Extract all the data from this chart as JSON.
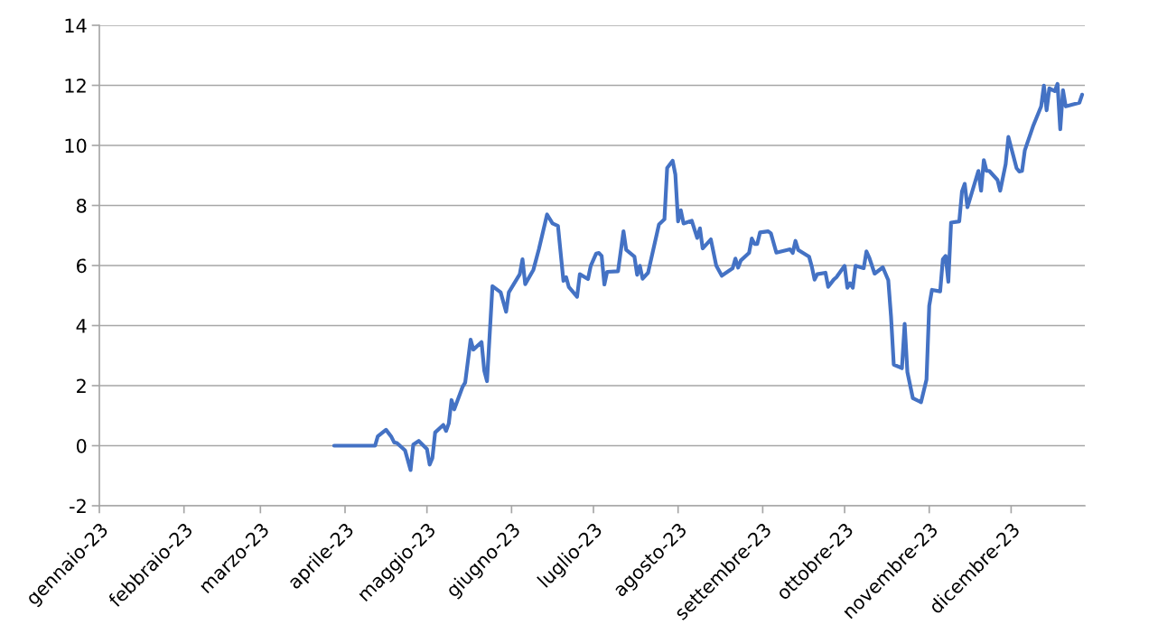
{
  "chart_data": {
    "type": "line",
    "x": [
      "2023-03-28",
      "2023-04-12",
      "2023-04-13",
      "2023-04-16",
      "2023-04-18",
      "2023-04-19",
      "2023-04-20",
      "2023-04-23",
      "2023-04-25",
      "2023-04-26",
      "2023-04-28",
      "2023-05-01",
      "2023-05-02",
      "2023-05-03",
      "2023-05-04",
      "2023-05-07",
      "2023-05-08",
      "2023-05-09",
      "2023-05-10",
      "2023-05-11",
      "2023-05-14",
      "2023-05-15",
      "2023-05-17",
      "2023-05-18",
      "2023-05-21",
      "2023-05-22",
      "2023-05-23",
      "2023-05-25",
      "2023-05-28",
      "2023-05-30",
      "2023-05-31",
      "2023-06-04",
      "2023-06-05",
      "2023-06-06",
      "2023-06-09",
      "2023-06-11",
      "2023-06-14",
      "2023-06-16",
      "2023-06-18",
      "2023-06-20",
      "2023-06-21",
      "2023-06-22",
      "2023-06-25",
      "2023-06-26",
      "2023-06-29",
      "2023-06-30",
      "2023-07-02",
      "2023-07-03",
      "2023-07-04",
      "2023-07-05",
      "2023-07-06",
      "2023-07-10",
      "2023-07-12",
      "2023-07-13",
      "2023-07-16",
      "2023-07-17",
      "2023-07-18",
      "2023-07-19",
      "2023-07-21",
      "2023-07-25",
      "2023-07-27",
      "2023-07-28",
      "2023-07-30",
      "2023-07-31",
      "2023-08-01",
      "2023-08-02",
      "2023-08-03",
      "2023-08-06",
      "2023-08-08",
      "2023-08-09",
      "2023-08-10",
      "2023-08-13",
      "2023-08-15",
      "2023-08-17",
      "2023-08-21",
      "2023-08-22",
      "2023-08-23",
      "2023-08-24",
      "2023-08-27",
      "2023-08-28",
      "2023-08-29",
      "2023-08-30",
      "2023-08-31",
      "2023-09-03",
      "2023-09-04",
      "2023-09-06",
      "2023-09-11",
      "2023-09-12",
      "2023-09-13",
      "2023-09-14",
      "2023-09-18",
      "2023-09-19",
      "2023-09-20",
      "2023-09-21",
      "2023-09-24",
      "2023-09-25",
      "2023-09-27",
      "2023-09-28",
      "2023-10-01",
      "2023-10-02",
      "2023-10-03",
      "2023-10-04",
      "2023-10-05",
      "2023-10-08",
      "2023-10-09",
      "2023-10-10",
      "2023-10-12",
      "2023-10-15",
      "2023-10-17",
      "2023-10-18",
      "2023-10-19",
      "2023-10-22",
      "2023-10-23",
      "2023-10-24",
      "2023-10-26",
      "2023-10-29",
      "2023-10-31",
      "2023-11-01",
      "2023-11-02",
      "2023-11-05",
      "2023-11-06",
      "2023-11-07",
      "2023-11-08",
      "2023-11-09",
      "2023-11-12",
      "2023-11-13",
      "2023-11-14",
      "2023-11-15",
      "2023-11-19",
      "2023-11-20",
      "2023-11-21",
      "2023-11-22",
      "2023-11-23",
      "2023-11-26",
      "2023-11-27",
      "2023-11-29",
      "2023-11-30",
      "2023-12-03",
      "2023-12-04",
      "2023-12-05",
      "2023-12-06",
      "2023-12-09",
      "2023-12-12",
      "2023-12-13",
      "2023-12-14",
      "2023-12-15",
      "2023-12-17",
      "2023-12-18",
      "2023-12-19",
      "2023-12-20",
      "2023-12-21",
      "2023-12-26",
      "2023-12-27"
    ],
    "series": [
      {
        "color": "#4472c4",
        "values": [
          0,
          0,
          0.31,
          0.53,
          0.29,
          0.11,
          0.09,
          -0.16,
          -0.81,
          0.04,
          0.16,
          -0.11,
          -0.63,
          -0.41,
          0.44,
          0.69,
          0.49,
          0.74,
          1.52,
          1.21,
          1.95,
          2.1,
          3.53,
          3.2,
          3.45,
          2.5,
          2.15,
          5.31,
          5.11,
          4.46,
          5.11,
          5.71,
          6.21,
          5.38,
          5.86,
          6.54,
          7.7,
          7.4,
          7.32,
          5.49,
          5.61,
          5.28,
          4.96,
          5.71,
          5.55,
          5.99,
          6.4,
          6.42,
          6.32,
          5.37,
          5.79,
          5.81,
          7.14,
          6.52,
          6.3,
          5.69,
          5.99,
          5.56,
          5.76,
          7.37,
          7.54,
          9.25,
          9.49,
          9.03,
          7.47,
          7.84,
          7.4,
          7.49,
          6.92,
          7.24,
          6.57,
          6.87,
          5.99,
          5.66,
          5.91,
          6.23,
          5.93,
          6.17,
          6.42,
          6.9,
          6.72,
          6.72,
          7.1,
          7.14,
          7.07,
          6.43,
          6.54,
          6.42,
          6.82,
          6.52,
          6.29,
          5.96,
          5.53,
          5.71,
          5.76,
          5.29,
          5.53,
          5.61,
          5.99,
          5.26,
          5.41,
          5.26,
          5.99,
          5.91,
          6.47,
          6.27,
          5.73,
          5.94,
          5.51,
          4.31,
          2.7,
          2.58,
          4.06,
          2.45,
          1.58,
          1.45,
          2.2,
          4.66,
          5.19,
          5.14,
          6.21,
          6.32,
          5.46,
          7.43,
          7.47,
          8.47,
          8.72,
          7.94,
          9.15,
          8.49,
          9.51,
          9.15,
          9.15,
          8.85,
          8.49,
          9.38,
          10.28,
          9.24,
          9.13,
          9.15,
          9.83,
          10.63,
          11.3,
          11.99,
          11.17,
          11.9,
          11.81,
          12.05,
          10.54,
          11.84,
          11.3,
          11.42,
          11.69
        ]
      }
    ],
    "xlim": [
      "2023-01-01",
      "2023-12-28"
    ],
    "xticks": [
      {
        "value": "2023-01-01",
        "label": "gennaio-23"
      },
      {
        "value": "2023-02-01",
        "label": "febbraio-23"
      },
      {
        "value": "2023-03-01",
        "label": "marzo-23"
      },
      {
        "value": "2023-04-01",
        "label": "aprile-23"
      },
      {
        "value": "2023-05-01",
        "label": "maggio-23"
      },
      {
        "value": "2023-06-01",
        "label": "giugno-23"
      },
      {
        "value": "2023-07-01",
        "label": "luglio-23"
      },
      {
        "value": "2023-08-01",
        "label": "agosto-23"
      },
      {
        "value": "2023-09-01",
        "label": "settembre-23"
      },
      {
        "value": "2023-10-01",
        "label": "ottobre-23"
      },
      {
        "value": "2023-11-01",
        "label": "novembre-23"
      },
      {
        "value": "2023-12-01",
        "label": "dicembre-23"
      }
    ],
    "ylim": [
      -2,
      14
    ],
    "yticks": [
      -2,
      0,
      2,
      4,
      6,
      8,
      10,
      12,
      14
    ],
    "grid": "y",
    "line_style": "solid"
  }
}
